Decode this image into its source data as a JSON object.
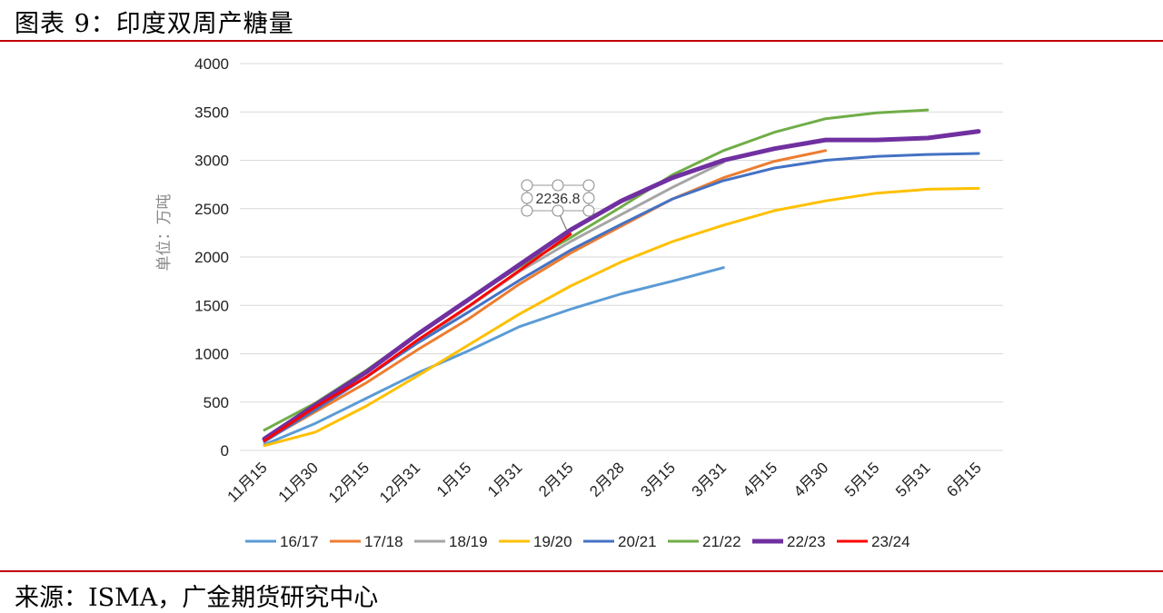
{
  "figure": {
    "title": "图表 9：印度双周产糖量",
    "source": "来源：ISMA，广金期货研究中心"
  },
  "colors": {
    "rule": "#c00000",
    "grid": "#d9d9d9"
  },
  "chart_data": {
    "type": "line",
    "title": "",
    "ylabel": "单位：万吨",
    "xlabel": "",
    "ylim": [
      0,
      4000
    ],
    "yticks": [
      0,
      500,
      1000,
      1500,
      2000,
      2500,
      3000,
      3500,
      4000
    ],
    "categories": [
      "11月15",
      "11月30",
      "12月15",
      "12月31",
      "1月15",
      "1月31",
      "2月15",
      "2月28",
      "3月15",
      "3月31",
      "4月15",
      "4月30",
      "5月15",
      "5月31",
      "6月15"
    ],
    "legend_position": "bottom",
    "series": [
      {
        "name": "16/17",
        "color": "#5b9bd5",
        "width": 3,
        "values": [
          60,
          280,
          540,
          800,
          1030,
          1280,
          1460,
          1620,
          1750,
          1890,
          null,
          null,
          null,
          null,
          null
        ]
      },
      {
        "name": "17/18",
        "color": "#ed7d31",
        "width": 3,
        "values": [
          100,
          400,
          700,
          1040,
          1360,
          1720,
          2040,
          2320,
          2600,
          2820,
          2990,
          3100,
          null,
          null,
          null
        ]
      },
      {
        "name": "18/19",
        "color": "#a5a5a5",
        "width": 3,
        "values": [
          110,
          430,
          760,
          1120,
          1480,
          1850,
          2160,
          2440,
          2720,
          2980,
          null,
          null,
          null,
          null,
          null
        ]
      },
      {
        "name": "19/20",
        "color": "#ffc000",
        "width": 3,
        "values": [
          50,
          190,
          460,
          770,
          1090,
          1410,
          1700,
          1950,
          2160,
          2330,
          2480,
          2580,
          2660,
          2700,
          2710
        ]
      },
      {
        "name": "20/21",
        "color": "#4472c4",
        "width": 3,
        "values": [
          90,
          420,
          760,
          1110,
          1430,
          1760,
          2070,
          2340,
          2600,
          2790,
          2920,
          3000,
          3040,
          3060,
          3070
        ]
      },
      {
        "name": "21/22",
        "color": "#70ad47",
        "width": 3,
        "values": [
          210,
          490,
          830,
          1200,
          1560,
          1900,
          2200,
          2520,
          2850,
          3100,
          3290,
          3430,
          3490,
          3520,
          null
        ]
      },
      {
        "name": "22/23",
        "color": "#7030a0",
        "width": 5,
        "values": [
          120,
          470,
          810,
          1200,
          1560,
          1920,
          2280,
          2580,
          2820,
          3000,
          3120,
          3210,
          3210,
          3230,
          3300
        ]
      },
      {
        "name": "23/24",
        "color": "#ff0000",
        "width": 3,
        "values": [
          100,
          450,
          760,
          1140,
          1490,
          1860,
          2236.8,
          null,
          null,
          null,
          null,
          null,
          null,
          null,
          null
        ]
      }
    ],
    "annotations": [
      {
        "text": "2236.8",
        "series": "23/24",
        "category": "2月15",
        "value": 2236.8
      }
    ]
  }
}
